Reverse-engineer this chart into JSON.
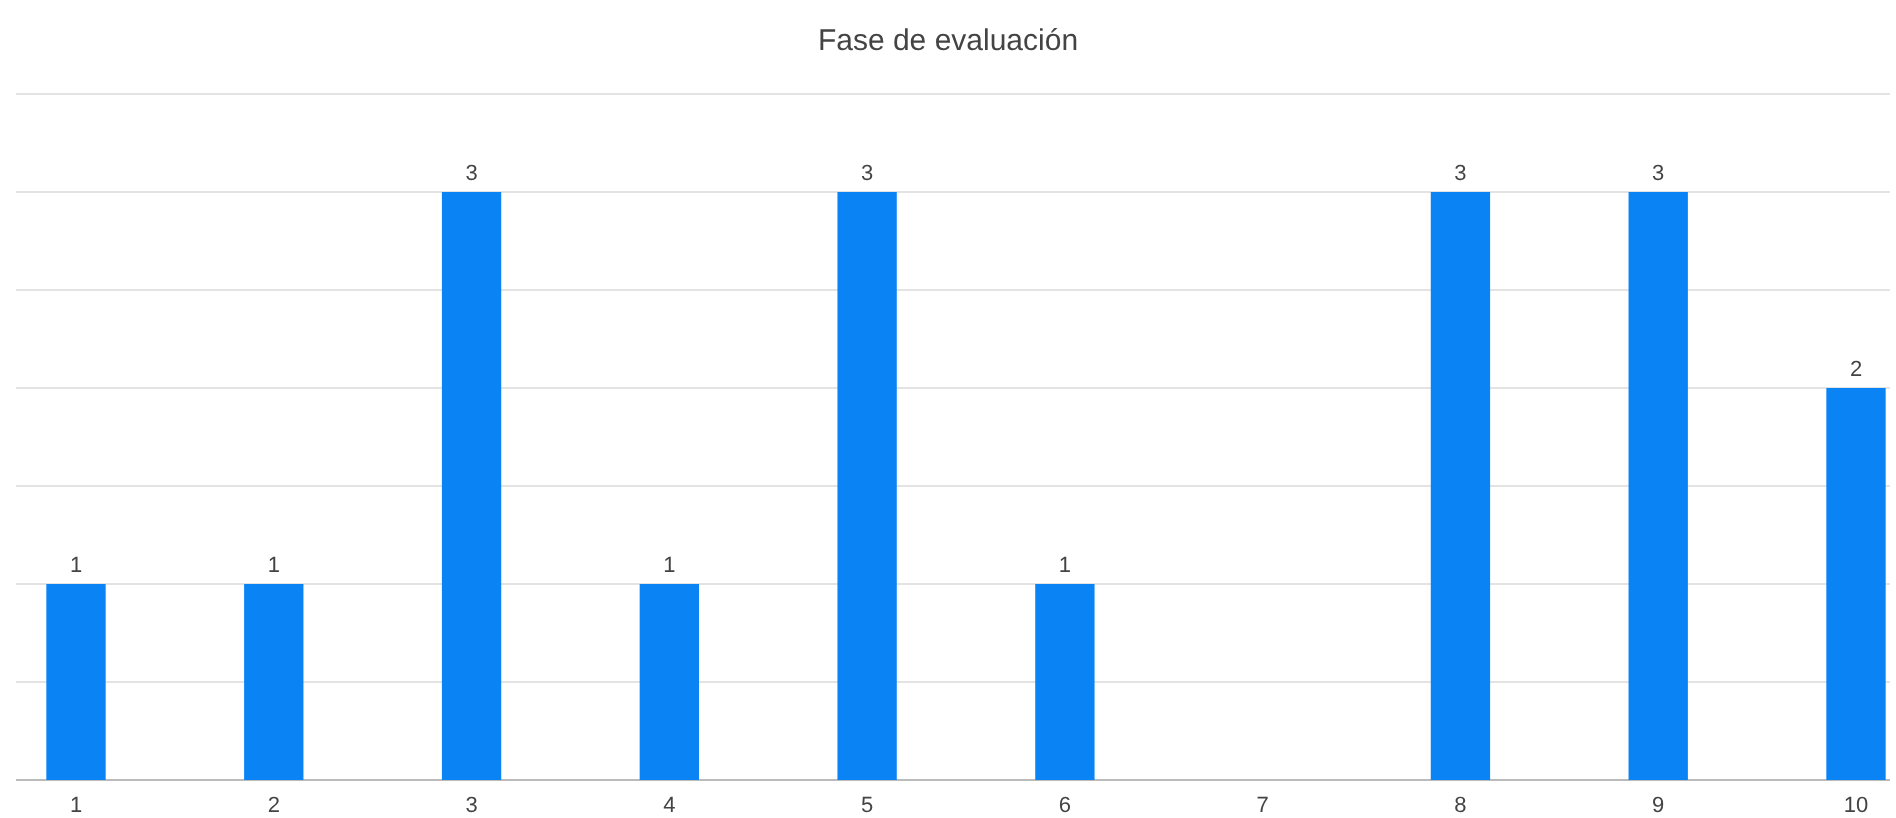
{
  "chart_data": {
    "type": "bar",
    "title": "Fase de evaluación",
    "categories": [
      "1",
      "2",
      "3",
      "4",
      "5",
      "6",
      "7",
      "8",
      "9",
      "10"
    ],
    "values": [
      1,
      1,
      3,
      1,
      3,
      1,
      0,
      3,
      3,
      2
    ],
    "value_labels": [
      "1",
      "1",
      "3",
      "1",
      "3",
      "1",
      null,
      "3",
      "3",
      "2"
    ],
    "color": "#0a84f5",
    "ylim": [
      0,
      3.5
    ],
    "yticks": [
      {
        "value": 0,
        "label": null
      },
      {
        "value": 0.5,
        "label": null
      },
      {
        "value": 1,
        "label": null
      },
      {
        "value": 1.5,
        "label": null
      },
      {
        "value": 2,
        "label": null
      },
      {
        "value": 2.5,
        "label": null
      },
      {
        "value": 3,
        "label": null
      },
      {
        "value": 3.5,
        "label": null
      }
    ],
    "grid": "y",
    "tick_labels": "x"
  }
}
